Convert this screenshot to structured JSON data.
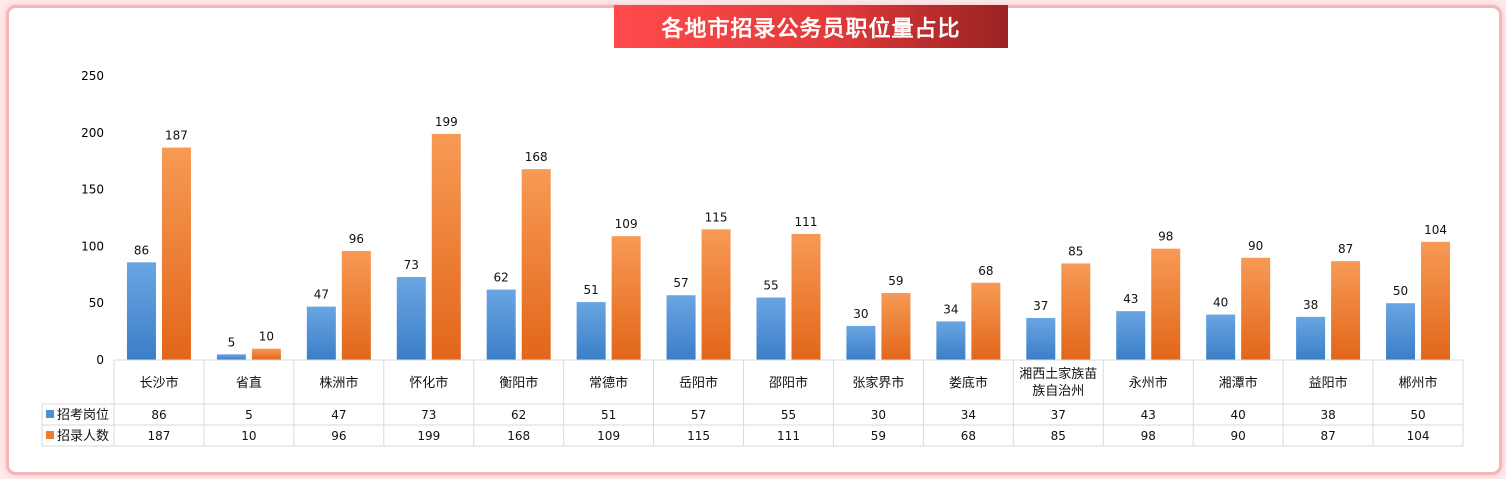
{
  "chart_data": {
    "type": "bar",
    "title": "各地市招录公务员职位量占比",
    "categories": [
      "长沙市",
      "省直",
      "株洲市",
      "怀化市",
      "衡阳市",
      "常德市",
      "岳阳市",
      "邵阳市",
      "张家界市",
      "娄底市",
      "湘西土家族苗族自治州",
      "永州市",
      "湘潭市",
      "益阳市",
      "郴州市"
    ],
    "category_lines": [
      [
        "长沙市"
      ],
      [
        "省直"
      ],
      [
        "株洲市"
      ],
      [
        "怀化市"
      ],
      [
        "衡阳市"
      ],
      [
        "常德市"
      ],
      [
        "岳阳市"
      ],
      [
        "邵阳市"
      ],
      [
        "张家界市"
      ],
      [
        "娄底市"
      ],
      [
        "湘西土家族苗",
        "族自治州"
      ],
      [
        "永州市"
      ],
      [
        "湘潭市"
      ],
      [
        "益阳市"
      ],
      [
        "郴州市"
      ]
    ],
    "series": [
      {
        "name": "招考岗位",
        "values": [
          86,
          5,
          47,
          73,
          62,
          51,
          57,
          55,
          30,
          34,
          37,
          43,
          40,
          38,
          50
        ],
        "color": "#4e8fd4"
      },
      {
        "name": "招录人数",
        "values": [
          187,
          10,
          96,
          199,
          168,
          109,
          115,
          111,
          59,
          68,
          85,
          98,
          90,
          87,
          104
        ],
        "color": "#ee7a2a"
      }
    ],
    "ylim": [
      0,
      250
    ],
    "yticks": [
      0,
      50,
      100,
      150,
      200,
      250
    ],
    "data_labels": true,
    "data_table": true,
    "grid": false
  }
}
